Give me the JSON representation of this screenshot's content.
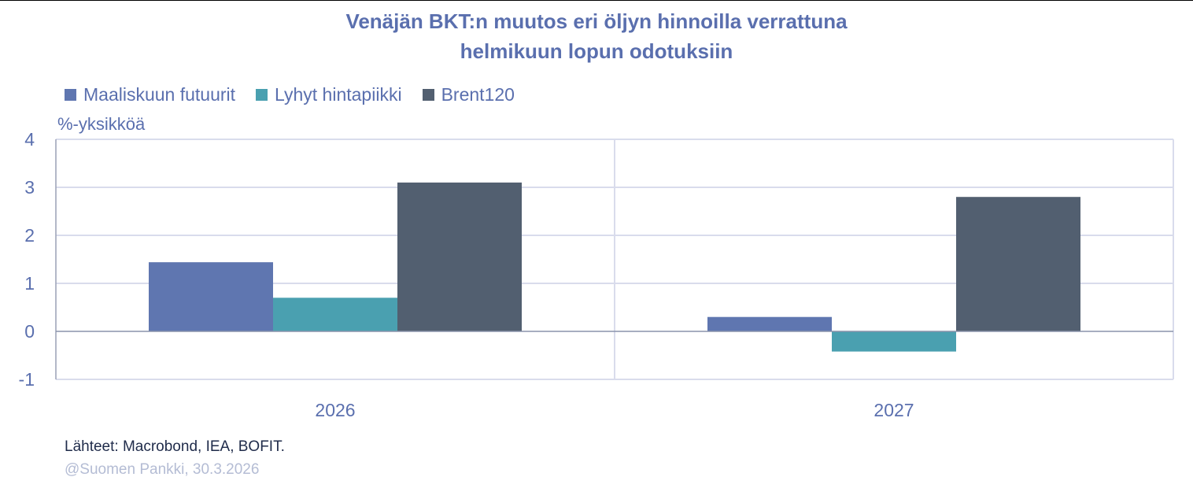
{
  "title": {
    "line1": "Venäjän BKT:n muutos eri öljyn hinnoilla verrattuna",
    "line2": "helmikuun lopun odotuksiin"
  },
  "legend": [
    {
      "label": "Maaliskuun futuurit",
      "color": "#5f76b0"
    },
    {
      "label": "Lyhyt hintapiikki",
      "color": "#4aa0b0"
    },
    {
      "label": "Brent120",
      "color": "#525f70"
    }
  ],
  "axis": {
    "unit_label": "%-yksikköä",
    "y_ticks": [
      "4",
      "3",
      "2",
      "1",
      "0",
      "-1"
    ],
    "x_ticks": [
      "2026",
      "2027"
    ]
  },
  "footer": {
    "source": "Lähteet: Macrobond, IEA, BOFIT.",
    "copyright": "@Suomen Pankki, 30.3.2026"
  },
  "colors": {
    "text": "#5a6fae",
    "gridline": "#d9dcec",
    "zero_line": "#8a93ab"
  },
  "chart_data": {
    "type": "bar",
    "title": "Venäjän BKT:n muutos eri öljyn hinnoilla verrattuna helmikuun lopun odotuksiin",
    "xlabel": "",
    "ylabel": "%-yksikköä",
    "categories": [
      "2026",
      "2027"
    ],
    "series": [
      {
        "name": "Maaliskuun futuurit",
        "values": [
          1.44,
          0.3
        ],
        "color": "#5f76b0"
      },
      {
        "name": "Lyhyt hintapiikki",
        "values": [
          0.7,
          -0.42
        ],
        "color": "#4aa0b0"
      },
      {
        "name": "Brent120",
        "values": [
          3.1,
          2.8
        ],
        "color": "#525f70"
      }
    ],
    "ylim": [
      -1,
      4
    ],
    "grid": true,
    "legend_position": "top-left"
  }
}
